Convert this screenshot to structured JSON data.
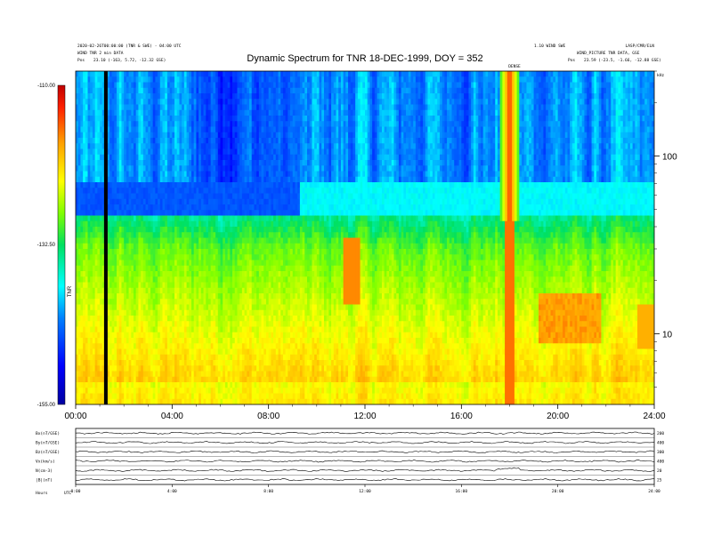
{
  "header": {
    "title": "Dynamic Spectrum for TNR 18-DEC-1999, DOY = 352",
    "left_line1": "2020-02-26T00:00:00 (TNR & SWE) - 04:00 UTC",
    "left_line2": "WIND TNR 2 min DATA",
    "left_line3_label": "Pos",
    "left_line3_value": "23.10 (-163, 5.72, -12.32 GSE)",
    "right_line1": "1.10 WIND SWE",
    "right_line2": "WIND_PICTURE  TNR DATA, GSE",
    "right_line3_label": "Pos",
    "right_line3_value": "23.59 (-23.5, -1.66, -12.88 GSE)",
    "right_top_small": "LASP/CMR/ELN",
    "event_label": "DENSE",
    "khz_label": "kHz"
  },
  "colorbar": {
    "label": "TNR",
    "ticks": [
      "-110.00",
      "-132.50",
      "-155.00"
    ],
    "min": -155.0,
    "max": -110.0
  },
  "chart_data": [
    {
      "type": "heatmap",
      "title": "Dynamic Spectrum for TNR 18-DEC-1999, DOY = 352",
      "x_tick_labels": [
        "00:00",
        "04:00",
        "08:00",
        "12:00",
        "16:00",
        "20:00",
        "24:00"
      ],
      "x_range_hours": [
        0,
        24
      ],
      "y_scale": "log",
      "y_range_khz": [
        4,
        300
      ],
      "y_tick_labels": [
        "100",
        "10"
      ],
      "y_tick_values_khz": [
        100,
        10
      ],
      "y_unit": "kHz",
      "z_range_dB": [
        -155.0,
        -110.0
      ],
      "colorbar_ticks_dB": [
        -110.0,
        -132.5,
        -155.0
      ],
      "marker_line_hour": 1.25,
      "event_hour": 18.0
    },
    {
      "type": "line",
      "panel_labels": [
        "Bx(nT/GSE)",
        "By(nT/GSE)",
        "Bz(nT/GSE)",
        "Vx(km/s)",
        "N(cm-3)",
        "|B|(nT)"
      ],
      "right_labels": [
        "200",
        "400",
        "300",
        "400",
        "20",
        "25"
      ],
      "x_tick_labels": [
        "0:00",
        "4:00",
        "8:00",
        "12:00",
        "16:00",
        "20:00",
        "24:00"
      ],
      "corner_label": "Hours",
      "corner_value": "UTC"
    }
  ]
}
